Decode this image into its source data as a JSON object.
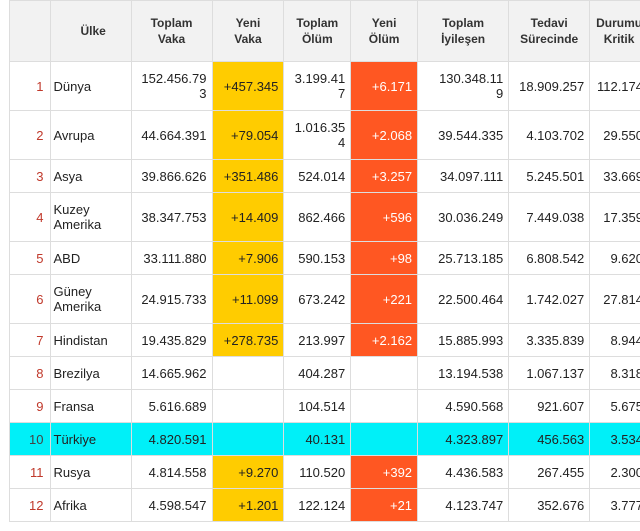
{
  "headers": {
    "country": "Ülke",
    "total_cases": [
      "Toplam",
      "Vaka"
    ],
    "new_cases": [
      "Yeni",
      "Vaka"
    ],
    "total_deaths": [
      "Toplam",
      "Ölüm"
    ],
    "new_deaths": [
      "Yeni",
      "Ölüm"
    ],
    "total_recovered": [
      "Toplam",
      "İyileşen"
    ],
    "active": [
      "Tedavi",
      "Sürecinde"
    ],
    "critical": [
      "Durumu",
      "Kritik"
    ]
  },
  "rows": [
    {
      "idx": "1",
      "name": "Dünya",
      "total_cases": "152.456.79\n3",
      "new_cases": "+457.345",
      "total_deaths": "3.199.41\n7",
      "new_deaths": "+6.171",
      "recovered": "130.348.11\n9",
      "active": "18.909.257",
      "critical": "112.174"
    },
    {
      "idx": "2",
      "name": "Avrupa",
      "total_cases": "44.664.391",
      "new_cases": "+79.054",
      "total_deaths": "1.016.35\n4",
      "new_deaths": "+2.068",
      "recovered": "39.544.335",
      "active": "4.103.702",
      "critical": "29.550"
    },
    {
      "idx": "3",
      "name": "Asya",
      "total_cases": "39.866.626",
      "new_cases": "+351.486",
      "total_deaths": "524.014",
      "new_deaths": "+3.257",
      "recovered": "34.097.111",
      "active": "5.245.501",
      "critical": "33.669"
    },
    {
      "idx": "4",
      "name": "Kuzey\nAmerika",
      "total_cases": "38.347.753",
      "new_cases": "+14.409",
      "total_deaths": "862.466",
      "new_deaths": "+596",
      "recovered": "30.036.249",
      "active": "7.449.038",
      "critical": "17.359"
    },
    {
      "idx": "5",
      "name": "ABD",
      "total_cases": "33.111.880",
      "new_cases": "+7.906",
      "total_deaths": "590.153",
      "new_deaths": "+98",
      "recovered": "25.713.185",
      "active": "6.808.542",
      "critical": "9.620"
    },
    {
      "idx": "6",
      "name": "Güney\nAmerika",
      "total_cases": "24.915.733",
      "new_cases": "+11.099",
      "total_deaths": "673.242",
      "new_deaths": "+221",
      "recovered": "22.500.464",
      "active": "1.742.027",
      "critical": "27.814"
    },
    {
      "idx": "7",
      "name": "Hindistan",
      "total_cases": "19.435.829",
      "new_cases": "+278.735",
      "total_deaths": "213.997",
      "new_deaths": "+2.162",
      "recovered": "15.885.993",
      "active": "3.335.839",
      "critical": "8.944"
    },
    {
      "idx": "8",
      "name": "Brezilya",
      "total_cases": "14.665.962",
      "new_cases": "",
      "total_deaths": "404.287",
      "new_deaths": "",
      "recovered": "13.194.538",
      "active": "1.067.137",
      "critical": "8.318"
    },
    {
      "idx": "9",
      "name": "Fransa",
      "total_cases": "5.616.689",
      "new_cases": "",
      "total_deaths": "104.514",
      "new_deaths": "",
      "recovered": "4.590.568",
      "active": "921.607",
      "critical": "5.675"
    },
    {
      "idx": "10",
      "name": "Türkiye",
      "total_cases": "4.820.591",
      "new_cases": "",
      "total_deaths": "40.131",
      "new_deaths": "",
      "recovered": "4.323.897",
      "active": "456.563",
      "critical": "3.534"
    },
    {
      "idx": "11",
      "name": "Rusya",
      "total_cases": "4.814.558",
      "new_cases": "+9.270",
      "total_deaths": "110.520",
      "new_deaths": "+392",
      "recovered": "4.436.583",
      "active": "267.455",
      "critical": "2.300"
    },
    {
      "idx": "12",
      "name": "Afrika",
      "total_cases": "4.598.547",
      "new_cases": "+1.201",
      "total_deaths": "122.124",
      "new_deaths": "+21",
      "recovered": "4.123.747",
      "active": "352.676",
      "critical": "3.777"
    }
  ],
  "colors": {
    "new_cases_bg": "#ffcc00",
    "new_deaths_bg": "#ff5722",
    "highlight_row_bg": "#00f0f8",
    "index_text": "#c0392b",
    "header_bg": "#f2f2f2"
  }
}
